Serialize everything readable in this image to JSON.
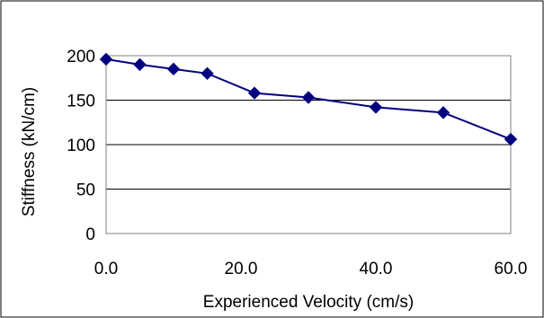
{
  "chart_data": {
    "type": "line",
    "title": "",
    "xlabel": "Experienced Velocity (cm/s)",
    "ylabel": "Stiffness (kN/cm)",
    "xlim": [
      0,
      60
    ],
    "ylim": [
      0,
      200
    ],
    "x_ticks": [
      "0.0",
      "20.0",
      "40.0",
      "60.0"
    ],
    "x_tick_values": [
      0,
      20,
      40,
      60
    ],
    "y_ticks": [
      "0",
      "50",
      "100",
      "150",
      "200"
    ],
    "y_tick_values": [
      0,
      50,
      100,
      150,
      200
    ],
    "grid": "horizontal",
    "legend": "none",
    "series": [
      {
        "x": [
          0,
          5,
          10,
          15,
          22,
          30,
          40,
          50,
          60
        ],
        "y": [
          196,
          190,
          185,
          180,
          158,
          153,
          142,
          136,
          106
        ],
        "color": "#000080",
        "marker": "diamond"
      }
    ]
  }
}
